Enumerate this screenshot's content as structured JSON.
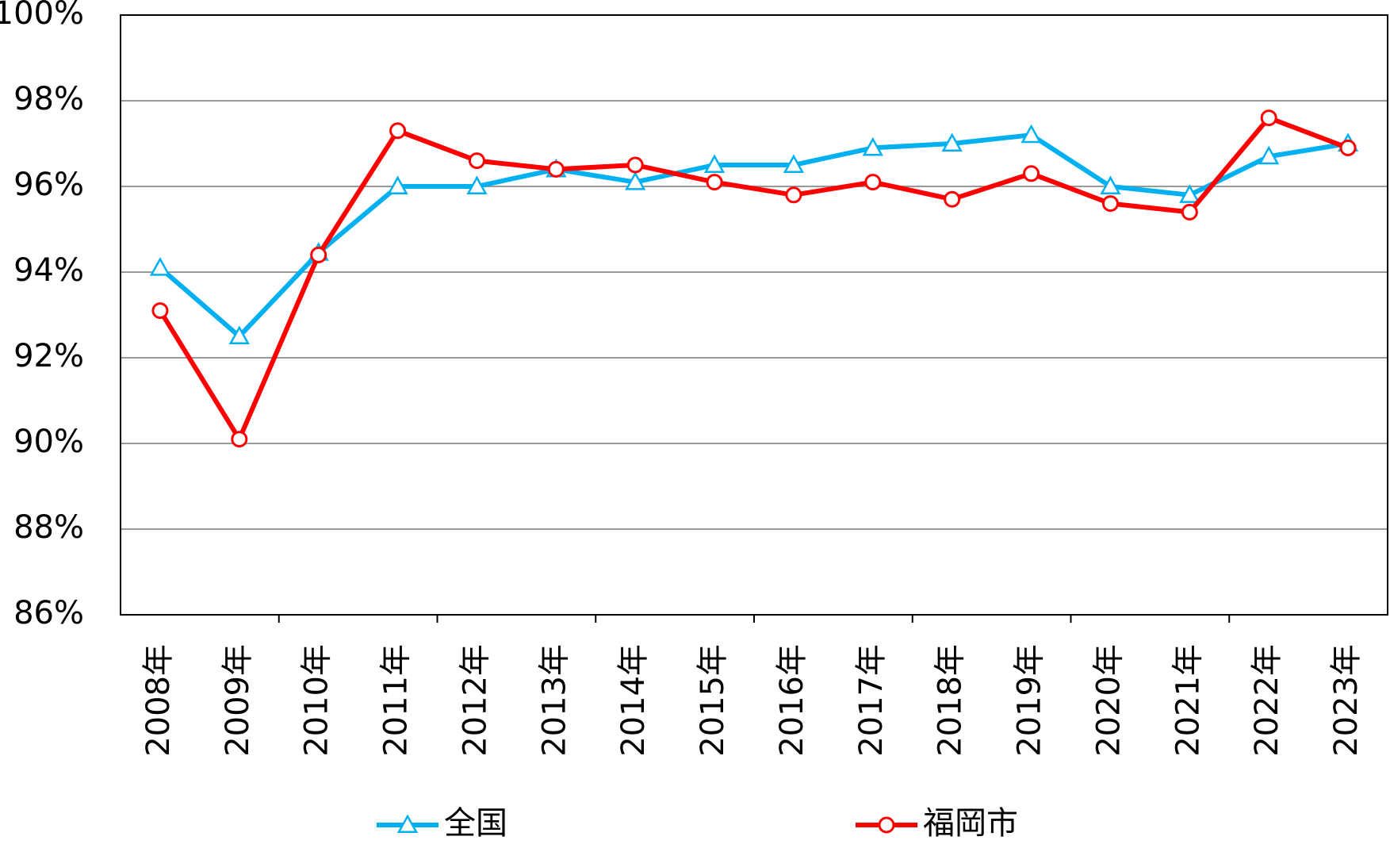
{
  "chart_data": {
    "type": "line",
    "categories": [
      "2008年",
      "2009年",
      "2010年",
      "2011年",
      "2012年",
      "2013年",
      "2014年",
      "2015年",
      "2016年",
      "2017年",
      "2018年",
      "2019年",
      "2020年",
      "2021年",
      "2022年",
      "2023年"
    ],
    "series": [
      {
        "name": "全国",
        "color": "#00b0f0",
        "marker": "triangle",
        "values": [
          94.1,
          92.5,
          94.45,
          96.0,
          96.0,
          96.4,
          96.1,
          96.5,
          96.5,
          96.9,
          97.0,
          97.2,
          96.0,
          95.8,
          96.7,
          97.0
        ]
      },
      {
        "name": "福岡市",
        "color": "#ff0000",
        "marker": "circle",
        "values": [
          93.1,
          90.1,
          94.4,
          97.3,
          96.6,
          96.4,
          96.5,
          96.1,
          95.8,
          96.1,
          95.7,
          96.3,
          95.6,
          95.4,
          97.6,
          96.9
        ]
      }
    ],
    "ylim": [
      86,
      100
    ],
    "yticks": [
      {
        "value": 86,
        "label": "86%"
      },
      {
        "value": 88,
        "label": "88%"
      },
      {
        "value": 90,
        "label": "90%"
      },
      {
        "value": 92,
        "label": "92%"
      },
      {
        "value": 94,
        "label": "94%"
      },
      {
        "value": 96,
        "label": "96%"
      },
      {
        "value": 98,
        "label": "98%"
      },
      {
        "value": 100,
        "label": "100%"
      }
    ],
    "grid": true
  }
}
